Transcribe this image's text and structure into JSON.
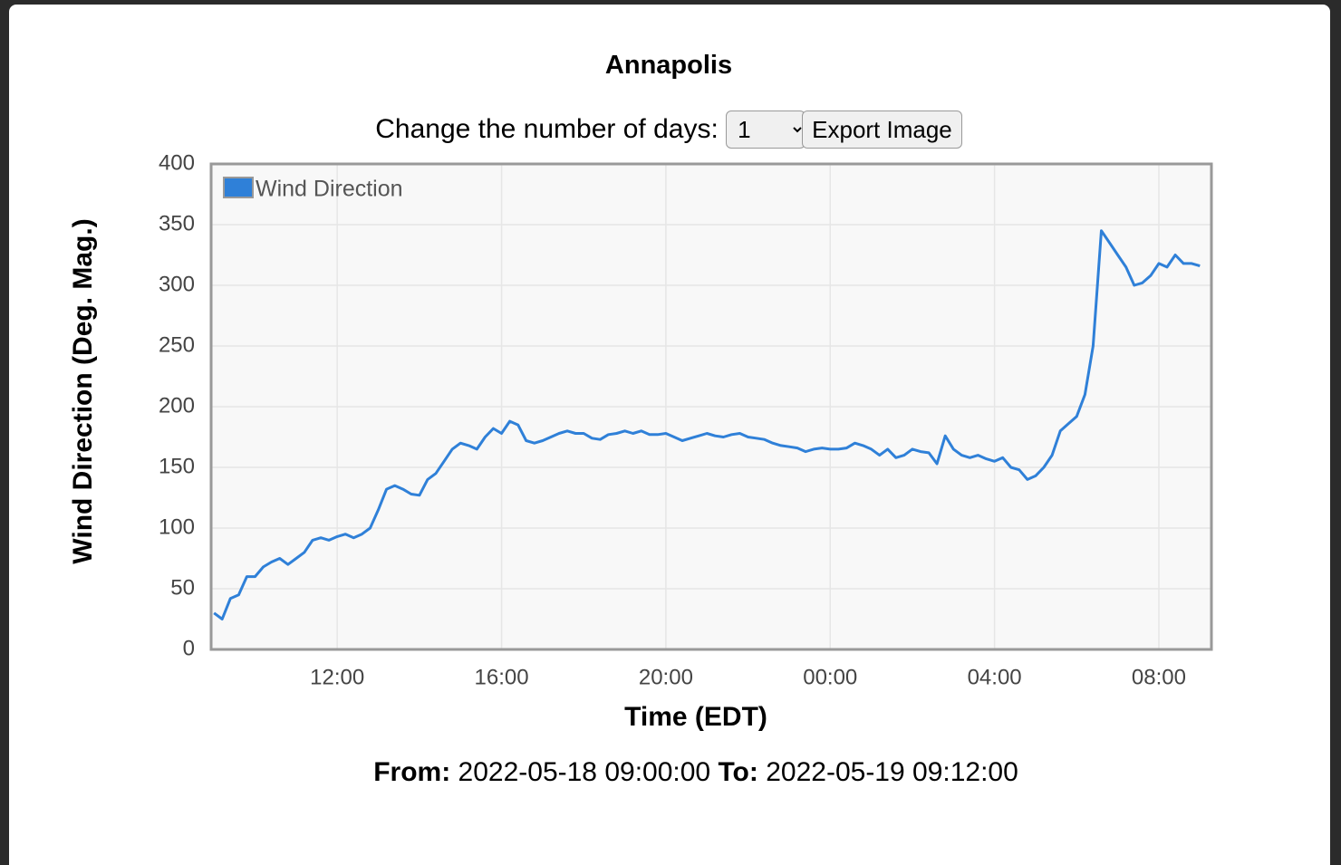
{
  "header": {
    "title": "Annapolis"
  },
  "controls": {
    "days_label": "Change the number of days:",
    "days_value": "1",
    "export_button": "Export Image"
  },
  "chart_data": {
    "type": "line",
    "y_label": "Wind Direction (Deg. Mag.)",
    "x_label": "Time (EDT)",
    "x": [
      9.0,
      9.2,
      9.4,
      9.6,
      9.8,
      10.0,
      10.2,
      10.4,
      10.6,
      10.8,
      11.0,
      11.2,
      11.4,
      11.6,
      11.8,
      12.0,
      12.2,
      12.4,
      12.6,
      12.8,
      13.0,
      13.2,
      13.4,
      13.6,
      13.8,
      14.0,
      14.2,
      14.4,
      14.6,
      14.8,
      15.0,
      15.2,
      15.4,
      15.6,
      15.8,
      16.0,
      16.2,
      16.4,
      16.6,
      16.8,
      17.0,
      17.2,
      17.4,
      17.6,
      17.8,
      18.0,
      18.2,
      18.4,
      18.6,
      18.8,
      19.0,
      19.2,
      19.4,
      19.6,
      19.8,
      20.0,
      20.2,
      20.4,
      20.6,
      20.8,
      21.0,
      21.2,
      21.4,
      21.6,
      21.8,
      22.0,
      22.2,
      22.4,
      22.6,
      22.8,
      23.0,
      23.2,
      23.4,
      23.6,
      23.8,
      24.0,
      24.2,
      24.4,
      24.6,
      24.8,
      25.0,
      25.2,
      25.4,
      25.6,
      25.8,
      26.0,
      26.2,
      26.4,
      26.6,
      26.8,
      27.0,
      27.2,
      27.4,
      27.6,
      27.8,
      28.0,
      28.2,
      28.4,
      28.6,
      28.8,
      29.0,
      29.2,
      29.4,
      29.6,
      29.8,
      30.0,
      30.2,
      30.4,
      30.6,
      30.8,
      31.0,
      31.2,
      31.4,
      31.6,
      31.8,
      32.0,
      32.2,
      32.4,
      32.6,
      32.8,
      33.0
    ],
    "series": [
      {
        "name": "Wind Direction",
        "color": "#2f80d8",
        "values": [
          30,
          25,
          42,
          45,
          60,
          60,
          68,
          72,
          75,
          70,
          75,
          80,
          90,
          92,
          90,
          93,
          95,
          92,
          95,
          100,
          115,
          132,
          135,
          132,
          128,
          127,
          140,
          145,
          155,
          165,
          170,
          168,
          165,
          175,
          182,
          178,
          188,
          185,
          172,
          170,
          172,
          175,
          178,
          180,
          178,
          178,
          174,
          173,
          177,
          178,
          180,
          178,
          180,
          177,
          177,
          178,
          175,
          172,
          174,
          176,
          178,
          176,
          175,
          177,
          178,
          175,
          174,
          173,
          170,
          168,
          167,
          166,
          163,
          165,
          166,
          165,
          165,
          166,
          170,
          168,
          165,
          160,
          165,
          158,
          160,
          165,
          163,
          162,
          153,
          176,
          165,
          160,
          158,
          160,
          157,
          155,
          158,
          150,
          148,
          140,
          143,
          150,
          160,
          180,
          186,
          192,
          210,
          250,
          345,
          335,
          325,
          315,
          300,
          302,
          308,
          318,
          315,
          325,
          318,
          318,
          316
        ]
      }
    ],
    "xlim": [
      8.93,
      33.28
    ],
    "xticks": [
      {
        "value": 12,
        "label": "12:00"
      },
      {
        "value": 16,
        "label": "16:00"
      },
      {
        "value": 20,
        "label": "20:00"
      },
      {
        "value": 24,
        "label": "00:00"
      },
      {
        "value": 28,
        "label": "04:00"
      },
      {
        "value": 32,
        "label": "08:00"
      }
    ],
    "ylim": [
      0,
      400
    ],
    "yticks": [
      0,
      50,
      100,
      150,
      200,
      250,
      300,
      350,
      400
    ],
    "grid": true,
    "legend": "top-left"
  },
  "footer": {
    "from_label": "From:",
    "from": "2022-05-18 09:00:00",
    "to_label": "To:",
    "to": "2022-05-19 09:12:00"
  }
}
